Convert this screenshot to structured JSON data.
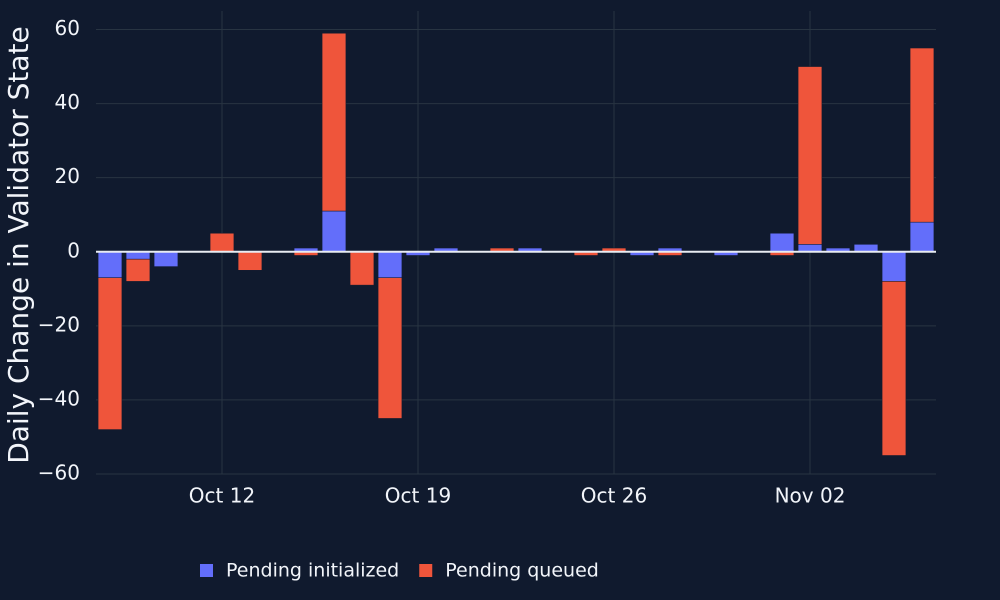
{
  "chart_data": {
    "type": "bar",
    "barmode": "relative",
    "y_label": "Daily Change in Validator State",
    "categories": [
      null,
      null,
      null,
      null,
      "Oct 12",
      null,
      null,
      null,
      null,
      null,
      null,
      "Oct 19",
      null,
      null,
      null,
      null,
      null,
      null,
      "Oct 26",
      null,
      null,
      null,
      null,
      null,
      null,
      "Nov 02",
      null,
      null,
      null,
      null
    ],
    "series": [
      {
        "name": "Pending initialized",
        "color": "#636efa",
        "values": [
          -7,
          -2,
          -4,
          0,
          0,
          0,
          0,
          1,
          11,
          0,
          -7,
          -1,
          1,
          0,
          0,
          1,
          0,
          0,
          0,
          -1,
          1,
          0,
          -1,
          0,
          5,
          2,
          1,
          2,
          -8,
          8
        ]
      },
      {
        "name": "Pending queued",
        "color": "#ef553b",
        "values": [
          -41,
          -6,
          0,
          0,
          5,
          -5,
          0,
          -1,
          48,
          -9,
          -38,
          0,
          0,
          0,
          1,
          0,
          0,
          -1,
          1,
          0,
          -1,
          0,
          0,
          0,
          -1,
          48,
          0,
          0,
          -47,
          47
        ]
      }
    ],
    "ylim": [
      -60,
      65
    ],
    "yticks": [
      {
        "value": -60,
        "label": "−60"
      },
      {
        "value": -40,
        "label": "−40"
      },
      {
        "value": -20,
        "label": "−20"
      },
      0,
      20,
      40,
      60
    ],
    "grid": true,
    "legend": "bottom"
  }
}
